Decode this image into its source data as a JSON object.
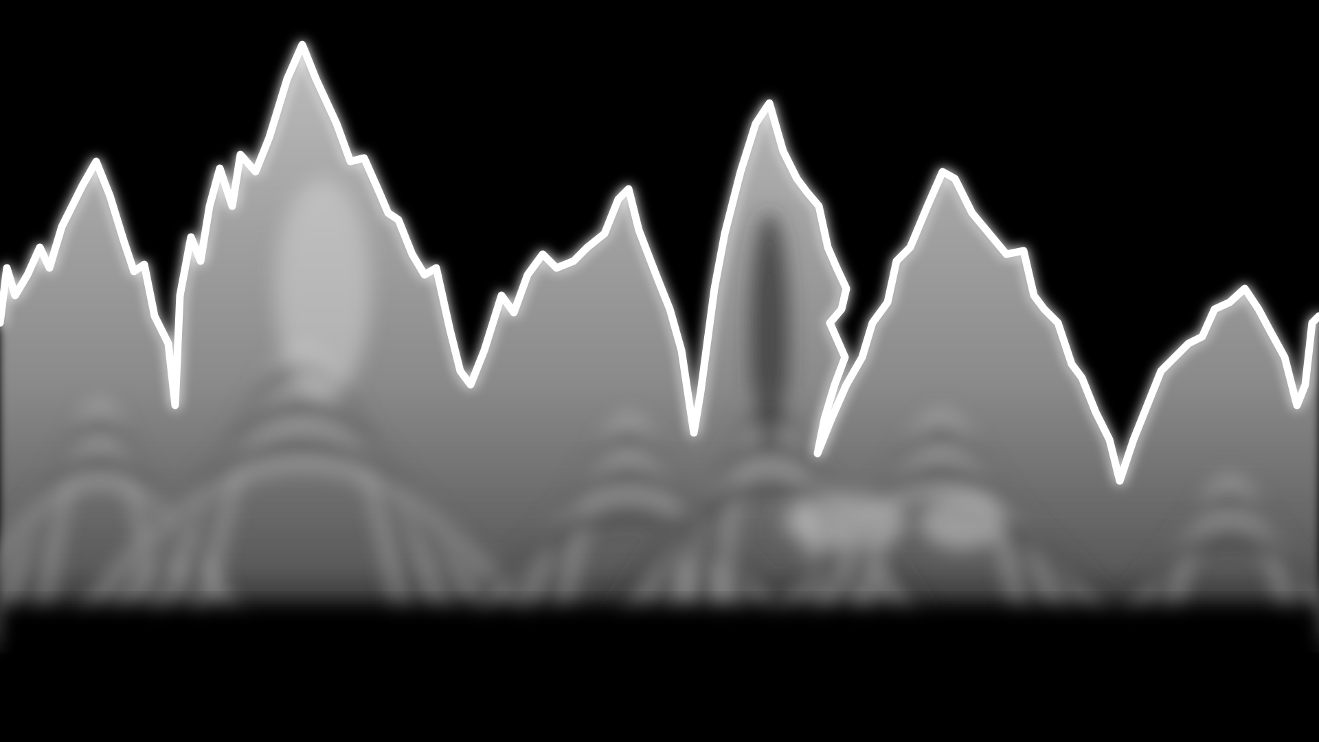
{
  "scene": {
    "subject": "mountain-ridge-silhouette",
    "colors": {
      "background": "#000000",
      "ridge": "#ffffff",
      "fill_light": "#c8c8c8",
      "fill_dark": "#3a3a3a"
    }
  }
}
